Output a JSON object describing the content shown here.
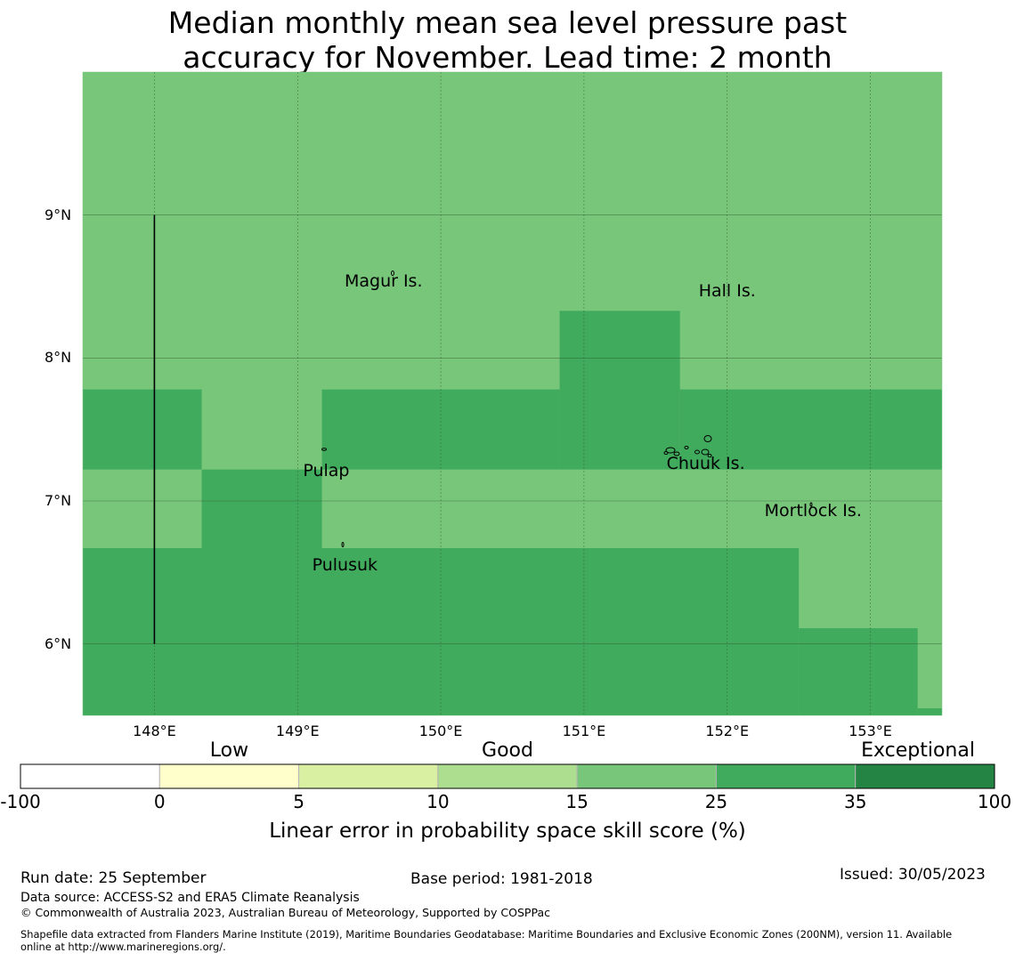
{
  "title_line1": "Median monthly mean sea level pressure past",
  "title_line2": "accuracy for November. Lead time: 2 month",
  "map": {
    "lon_range": [
      147.5,
      153.5
    ],
    "lat_range": [
      5.5,
      10.0
    ],
    "lat_ticks": [
      {
        "value": 9,
        "label": "9°N"
      },
      {
        "value": 8,
        "label": "8°N"
      },
      {
        "value": 7,
        "label": "7°N"
      },
      {
        "value": 6,
        "label": "6°N"
      }
    ],
    "lon_ticks": [
      {
        "value": 148,
        "label": "148°E"
      },
      {
        "value": 149,
        "label": "149°E"
      },
      {
        "value": 150,
        "label": "150°E"
      },
      {
        "value": 151,
        "label": "151°E"
      },
      {
        "value": 152,
        "label": "152°E"
      },
      {
        "value": 153,
        "label": "153°E"
      }
    ],
    "background_color": "#78c67a",
    "cell_colors": {
      "15-25": "#78c67a",
      "25-35": "#41ab5d"
    },
    "cells_25_35": [
      {
        "lon": [
          147.5,
          148.33
        ],
        "lat": [
          7.22,
          7.78
        ]
      },
      {
        "lon": [
          149.17,
          150.83
        ],
        "lat": [
          7.22,
          7.78
        ]
      },
      {
        "lon": [
          150.83,
          151.67
        ],
        "lat": [
          7.22,
          8.33
        ]
      },
      {
        "lon": [
          151.67,
          153.5
        ],
        "lat": [
          7.22,
          7.78
        ]
      },
      {
        "lon": [
          148.33,
          149.17
        ],
        "lat": [
          6.67,
          7.22
        ]
      },
      {
        "lon": [
          147.5,
          152.5
        ],
        "lat": [
          5.5,
          6.67
        ]
      },
      {
        "lon": [
          152.5,
          153.33
        ],
        "lat": [
          5.5,
          6.11
        ]
      },
      {
        "lon": [
          153.33,
          153.5
        ],
        "lat": [
          5.5,
          5.55
        ]
      }
    ],
    "boundary_line": {
      "lon": 148.0,
      "lat": [
        6.0,
        9.0
      ]
    },
    "places": [
      {
        "name": "Magur Is.",
        "lon": 149.6,
        "lat": 8.54
      },
      {
        "name": "Hall Is.",
        "lon": 152.0,
        "lat": 8.47
      },
      {
        "name": "Pulap",
        "lon": 149.2,
        "lat": 7.21
      },
      {
        "name": "Chuuk Is.",
        "lon": 151.85,
        "lat": 7.26
      },
      {
        "name": "Mortlock Is.",
        "lon": 152.6,
        "lat": 6.93
      },
      {
        "name": "Pulusuk",
        "lon": 149.33,
        "lat": 6.55
      }
    ]
  },
  "colorbar": {
    "categories": [
      "Low",
      "Good",
      "Exceptional"
    ],
    "bins": [
      {
        "from": -100,
        "to": 0,
        "color": "#ffffff"
      },
      {
        "from": 0,
        "to": 5,
        "color": "#ffffcc"
      },
      {
        "from": 5,
        "to": 10,
        "color": "#d9f0a3"
      },
      {
        "from": 10,
        "to": 15,
        "color": "#addd8e"
      },
      {
        "from": 15,
        "to": 25,
        "color": "#78c67a"
      },
      {
        "from": 25,
        "to": 35,
        "color": "#41ab5d"
      },
      {
        "from": 35,
        "to": 100,
        "color": "#238443"
      }
    ],
    "tick_labels": [
      "-100",
      "0",
      "5",
      "10",
      "15",
      "25",
      "35",
      "100"
    ],
    "title": "Linear error in probability space skill score (%)"
  },
  "footer": {
    "run_date": "Run date: 25 September",
    "base_period": "Base period: 1981-2018",
    "issued": "Issued: 30/05/2023",
    "data_source": "Data source: ACCESS-S2 and ERA5 Climate Reanalysis",
    "copyright": "© Commonwealth of Australia 2023, Australian Bureau of Meteorology, Supported by COSPPac",
    "shapefile_line1": "Shapefile data extracted from Flanders Marine Institute (2019), Maritime Boundaries Geodatabase: Maritime Boundaries and Exclusive Economic Zones (200NM), version 11. Available",
    "shapefile_line2": "online at http://www.marineregions.org/."
  }
}
